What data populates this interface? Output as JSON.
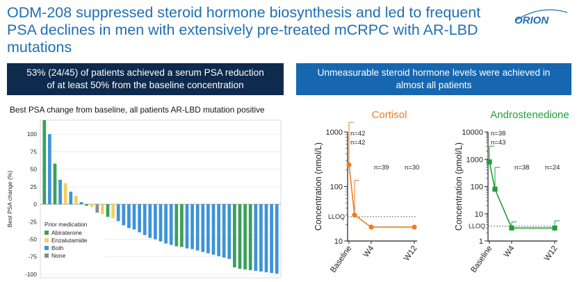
{
  "page": {
    "title_line1": "ODM-208 suppressed steroid hormone biosynthesis and led to frequent",
    "title_line2": "PSA declines in men with extensively pre-treated mCRPC with AR-LBD mutations",
    "logo_text": "ORION",
    "banner_left_line1": "53% (24/45) of patients achieved a serum PSA reduction",
    "banner_left_line2": "of at least 50% from the baseline concentration",
    "banner_right_line1": "Unmeasurable steroid hormone levels were achieved in",
    "banner_right_line2": "almost all patients",
    "waterfall_subtitle": "Best PSA change from baseline, all patients AR-LBD mutation positive"
  },
  "colors": {
    "title": "#1f6fb4",
    "banner_left_bg": "#0e2a4d",
    "banner_right_bg": "#1667b0",
    "cortisol": "#f07b1f",
    "androstenedione": "#1f9e3a",
    "abiraterone": "#3aa05a",
    "enzalutamide": "#f2d060",
    "both": "#3d93d8",
    "none": "#8a8a8a"
  },
  "chart_data": [
    {
      "type": "bar",
      "ylabel": "Best PSA change (%)",
      "ylim": [
        -105,
        120
      ],
      "yticks": [
        100,
        75,
        50,
        25,
        0,
        -25,
        -50,
        -75,
        -100
      ],
      "grid": true,
      "legend_title": "Prior medication",
      "legend_position": "bottom-left",
      "legend": [
        {
          "key": "A",
          "label": "Abiraterone"
        },
        {
          "key": "E",
          "label": "Enzalutamide"
        },
        {
          "key": "B",
          "label": "Both"
        },
        {
          "key": "N",
          "label": "None"
        }
      ],
      "values": [
        120,
        100,
        58,
        35,
        30,
        18,
        12,
        3,
        -2,
        -4,
        -12,
        -14,
        -18,
        -20,
        -24,
        -30,
        -34,
        -36,
        -40,
        -44,
        -48,
        -50,
        -53,
        -56,
        -58,
        -60,
        -61,
        -63,
        -64,
        -66,
        -68,
        -70,
        -72,
        -74,
        -76,
        -78,
        -90,
        -92,
        -93,
        -94,
        -95,
        -96,
        -97,
        -98,
        -99
      ],
      "medication": [
        "A",
        "B",
        "A",
        "B",
        "E",
        "B",
        "E",
        "B",
        "A",
        "E",
        "N",
        "E",
        "A",
        "E",
        "B",
        "B",
        "B",
        "B",
        "B",
        "B",
        "B",
        "B",
        "B",
        "B",
        "B",
        "A",
        "A",
        "B",
        "B",
        "B",
        "B",
        "B",
        "B",
        "B",
        "B",
        "B",
        "A",
        "A",
        "A",
        "A",
        "B",
        "B",
        "B",
        "B",
        "B"
      ]
    },
    {
      "type": "line",
      "title": "Cortisol",
      "ylabel": "Concentration (nmol/L)",
      "y_scale": "log",
      "ylim": [
        10,
        1000
      ],
      "yticks": [
        10,
        100,
        1000
      ],
      "x": [
        "Baseline",
        "W4",
        "W12"
      ],
      "lloq": {
        "label": "LLOQ",
        "value": 28
      },
      "series": [
        {
          "x": [
            "Baseline",
            "",
            "W4",
            "W12"
          ],
          "y": [
            250,
            30,
            18,
            18
          ],
          "error_up": [
            1500,
            130,
            null,
            null
          ]
        }
      ],
      "n_labels": [
        {
          "text": "n=42",
          "x": "Baseline"
        },
        {
          "text": "n=42",
          "x": "Baseline"
        },
        {
          "text": "n=39",
          "x": "W4"
        },
        {
          "text": "n=30",
          "x": "W12"
        }
      ]
    },
    {
      "type": "line",
      "title": "Androstenedione",
      "ylabel": "Concentration (pmol/L)",
      "y_scale": "log",
      "ylim": [
        1,
        10000
      ],
      "yticks": [
        1,
        10,
        100,
        1000,
        10000
      ],
      "x": [
        "Baseline",
        "W4",
        "W12"
      ],
      "lloq": {
        "label": "LLOQ",
        "value": 3.5
      },
      "series": [
        {
          "x": [
            "Baseline",
            "",
            "W4",
            "W12"
          ],
          "y": [
            800,
            80,
            3,
            3
          ],
          "error_up": [
            3000,
            500,
            5,
            5.5
          ]
        }
      ],
      "n_labels": [
        {
          "text": "n=38",
          "x": "Baseline"
        },
        {
          "text": "n=43",
          "x": "Baseline"
        },
        {
          "text": "n=38",
          "x": "W4"
        },
        {
          "text": "n=24",
          "x": "W12"
        }
      ]
    }
  ]
}
